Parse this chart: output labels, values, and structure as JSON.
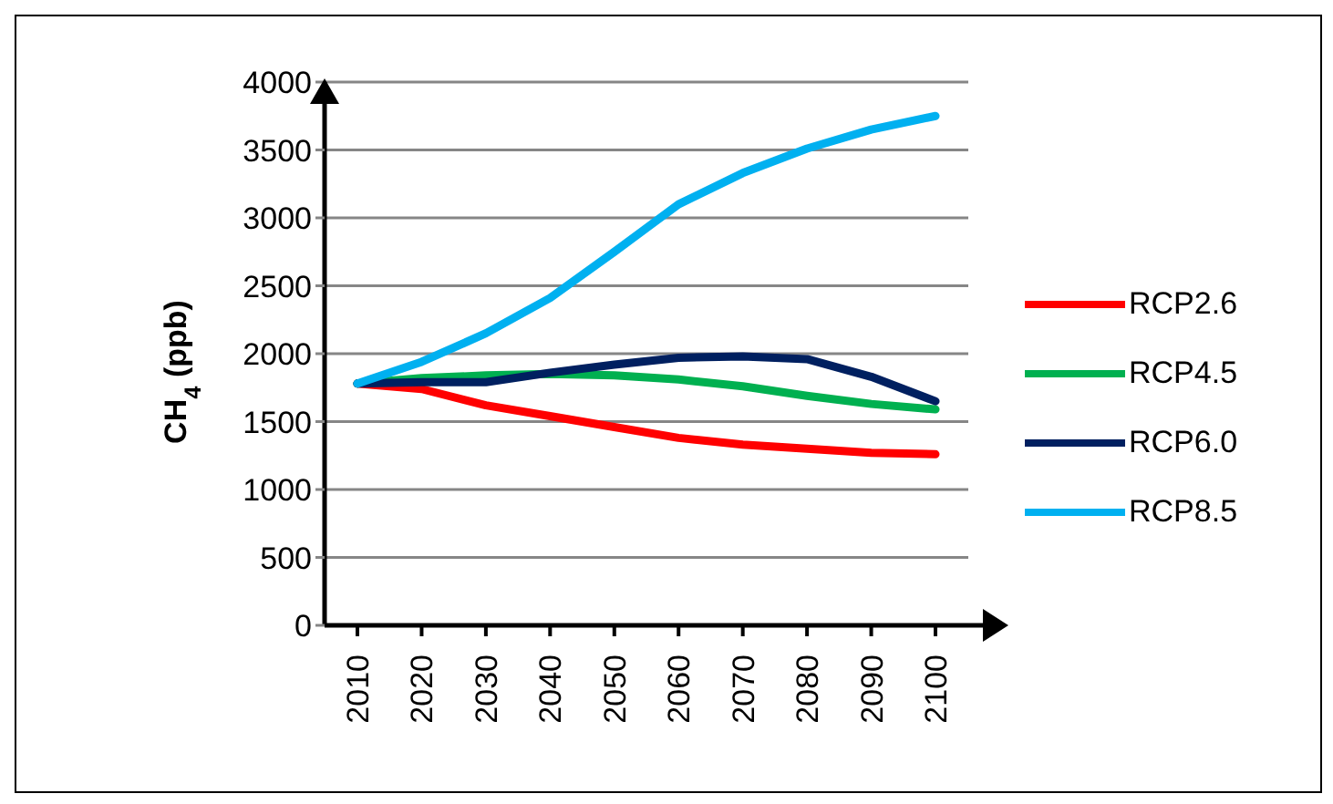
{
  "chart_data": {
    "type": "line",
    "ylabel": "CH$_{4}$ (ppb)",
    "categories": [
      "2010",
      "2020",
      "2030",
      "2040",
      "2050",
      "2060",
      "2070",
      "2080",
      "2090",
      "2100"
    ],
    "series": [
      {
        "name": "RCP2.6",
        "color": "#ff0000",
        "values": [
          1780,
          1740,
          1620,
          1540,
          1460,
          1380,
          1330,
          1300,
          1270,
          1260
        ]
      },
      {
        "name": "RCP4.5",
        "color": "#00b050",
        "values": [
          1780,
          1820,
          1840,
          1850,
          1840,
          1810,
          1760,
          1690,
          1630,
          1590
        ]
      },
      {
        "name": "RCP6.0",
        "color": "#002060",
        "values": [
          1780,
          1790,
          1790,
          1860,
          1920,
          1970,
          1980,
          1960,
          1830,
          1650
        ]
      },
      {
        "name": "RCP8.5",
        "color": "#00b0f0",
        "values": [
          1780,
          1940,
          2150,
          2410,
          2750,
          3100,
          3330,
          3510,
          3650,
          3750
        ]
      }
    ],
    "ylim": [
      0,
      4000
    ],
    "yticks": [
      0,
      500,
      1000,
      1500,
      2000,
      2500,
      3000,
      3500,
      4000
    ],
    "grid": "y",
    "legend": "right",
    "marker": "none",
    "line_style": "solid"
  }
}
